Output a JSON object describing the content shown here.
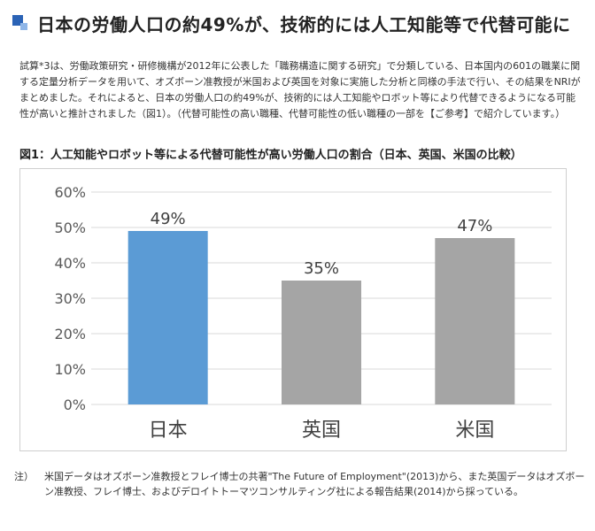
{
  "heading": {
    "title": "日本の労働人口の約49%が、技術的には人工知能等で代替可能に"
  },
  "body": {
    "text": "試算*3は、労働政策研究・研修機構が2012年に公表した「職務構造に関する研究」で分類している、日本国内の601の職業に関する定量分析データを用いて、オズボーン准教授が米国および英国を対象に実施した分析と同様の手法で行い、その結果をNRIがまとめました。それによると、日本の労働人口の約49%が、技術的には人工知能やロボット等により代替できるようになる可能性が高いと推計されました（図1）。（代替可能性の高い職種、代替可能性の低い職種の一部を【ご参考】で紹介しています。）"
  },
  "figure": {
    "title": "図1：人工知能やロボット等による代替可能性が高い労働人口の割合（日本、英国、米国の比較）"
  },
  "chart_data": {
    "type": "bar",
    "categories": [
      "日本",
      "英国",
      "米国"
    ],
    "values": [
      49,
      35,
      47
    ],
    "data_labels": [
      "49%",
      "35%",
      "47%"
    ],
    "y_ticks": [
      "0%",
      "10%",
      "20%",
      "30%",
      "40%",
      "50%",
      "60%"
    ],
    "ylim": [
      0,
      60
    ],
    "grid": true,
    "bar_colors": [
      "#5b9bd5",
      "#a5a5a5",
      "#a5a5a5"
    ],
    "grid_color": "#d9d9d9",
    "title": "",
    "xlabel": "",
    "ylabel": ""
  },
  "note": {
    "marker": "注）",
    "text": "米国データはオズボーン准教授とフレイ博士の共著\"The Future of Employment\"(2013)から、また英国データはオズボーン准教授、フレイ博士、およびデロイトトーマツコンサルティング社による報告結果(2014)から採っている。"
  }
}
